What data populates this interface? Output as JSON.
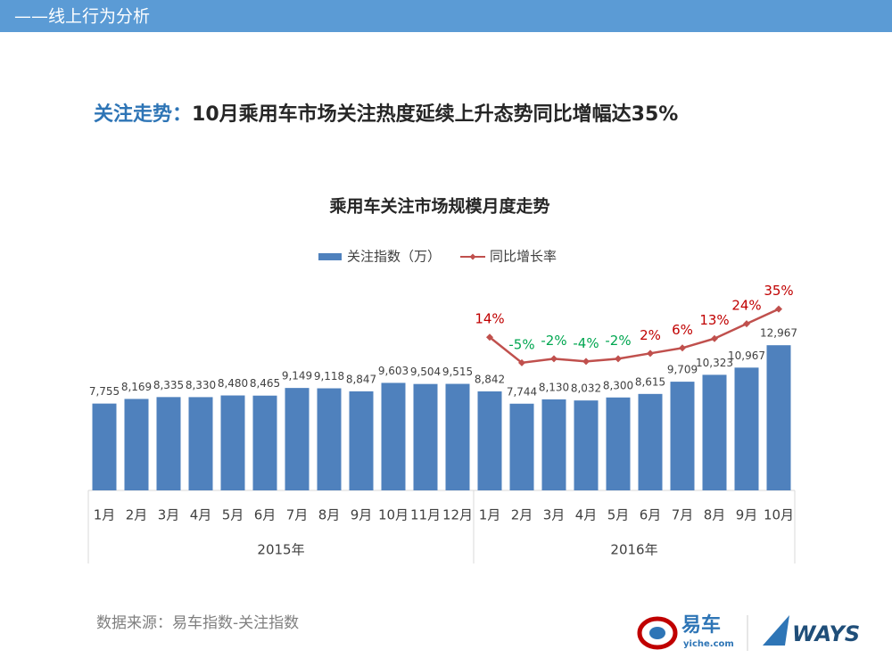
{
  "header": {
    "section": "——线上行为分析",
    "headline_prefix": "关注走势：",
    "headline": "10月乘用车市场关注热度延续上升态势同比增幅达35%"
  },
  "chart_data": {
    "type": "bar",
    "title": "乘用车关注市场规模月度走势",
    "groups": [
      {
        "label": "2015年",
        "categories": [
          "1月",
          "2月",
          "3月",
          "4月",
          "5月",
          "6月",
          "7月",
          "8月",
          "9月",
          "10月",
          "11月",
          "12月"
        ]
      },
      {
        "label": "2016年",
        "categories": [
          "1月",
          "2月",
          "3月",
          "4月",
          "5月",
          "6月",
          "7月",
          "8月",
          "9月",
          "10月"
        ]
      }
    ],
    "series": [
      {
        "name": "关注指数（万）",
        "color": "#4f81bd",
        "values": [
          7755,
          8169,
          8335,
          8330,
          8480,
          8465,
          9149,
          9118,
          8847,
          9603,
          9504,
          9515,
          8842,
          7744,
          8130,
          8032,
          8300,
          8615,
          9709,
          10323,
          10967,
          12967
        ],
        "value_labels": [
          "7,755",
          "8,169",
          "8,335",
          "8,330",
          "8,480",
          "8,465",
          "9,149",
          "9,118",
          "8,847",
          "9,603",
          "9,504",
          "9,515",
          "8,842",
          "7,744",
          "8,130",
          "8,032",
          "8,300",
          "8,615",
          "9,709",
          "10,323",
          "10,967",
          "12,967"
        ]
      },
      {
        "name": "同比增长率",
        "type": "line",
        "axis": "y2",
        "color": "#c0504d",
        "positive_label_color": "#c00000",
        "negative_label_color": "#00a650",
        "values": [
          null,
          null,
          null,
          null,
          null,
          null,
          null,
          null,
          null,
          null,
          null,
          null,
          14,
          -5,
          -2,
          -4,
          -2,
          2,
          6,
          13,
          24,
          35
        ],
        "value_labels": [
          null,
          null,
          null,
          null,
          null,
          null,
          null,
          null,
          null,
          null,
          null,
          null,
          "14%",
          "-5%",
          "-2%",
          "-4%",
          "-2%",
          "2%",
          "6%",
          "13%",
          "24%",
          "35%"
        ]
      }
    ],
    "ylim": [
      0,
      18000
    ],
    "y2lim": [
      -100,
      50
    ],
    "grid": false
  },
  "footer": {
    "source": "数据来源：易车指数-关注指数",
    "logo_cn": "易车",
    "logo_url": "yiche.com",
    "logo_ways": "WAYS"
  }
}
